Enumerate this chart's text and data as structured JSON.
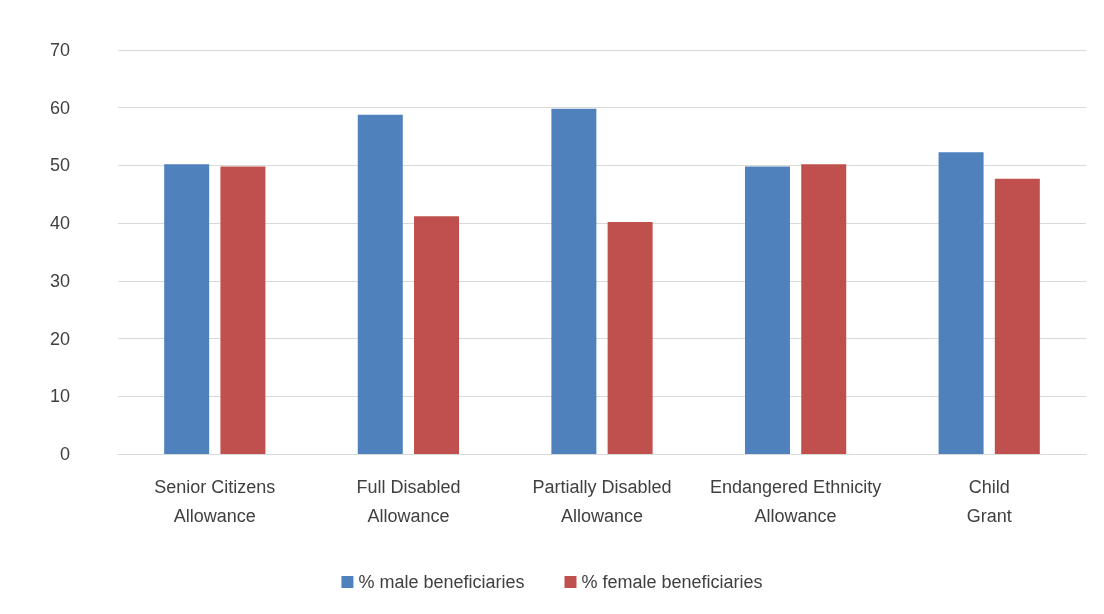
{
  "chart_data": {
    "type": "bar",
    "categories": [
      "Senior Citizens Allowance",
      "Full Disabled Allowance",
      "Partially Disabled Allowance",
      "Endangered Ethnicity Allowance",
      "Child Grant"
    ],
    "series": [
      {
        "name": "% male beneficiaries",
        "color": "#4f81bd",
        "values": [
          50.2,
          58.8,
          59.8,
          49.8,
          52.3
        ]
      },
      {
        "name": "% female beneficiaries",
        "color": "#c0504d",
        "values": [
          49.8,
          41.2,
          40.2,
          50.2,
          47.7
        ]
      }
    ],
    "ylim": [
      0,
      70
    ],
    "yticks": [
      0,
      10,
      20,
      30,
      40,
      50,
      60,
      70
    ],
    "grid": "y",
    "legend": "bottom"
  }
}
